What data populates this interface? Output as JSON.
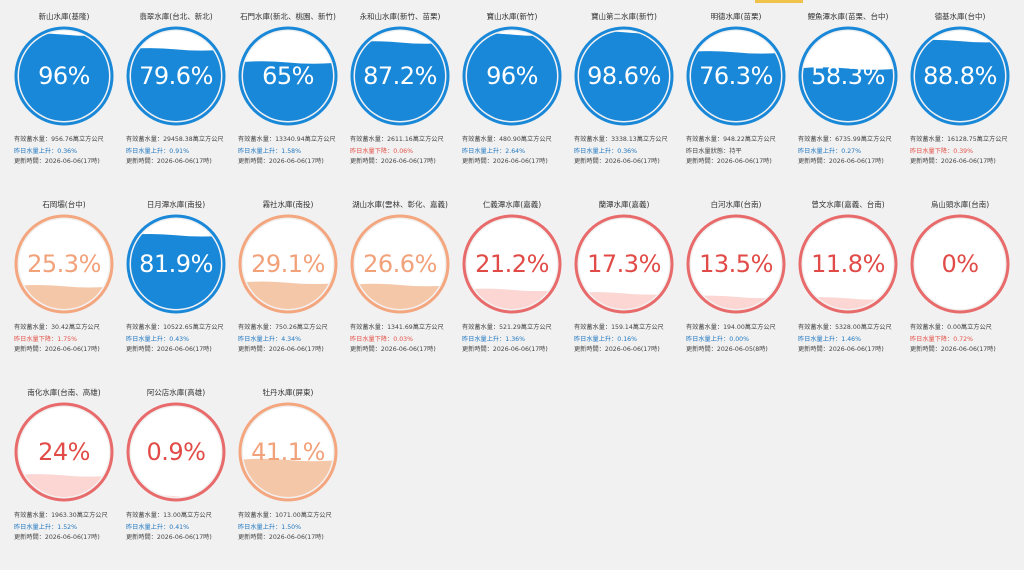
{
  "colors": {
    "blue": "#1a88d8",
    "blue_text": "#1f78c1",
    "orange": "#f4a67f",
    "orange_text": "#f1a27a",
    "red": "#e86a6a",
    "red_text": "#e14b47",
    "red_fill": "#fbd6d2",
    "orange_fill": "#f5c7a9"
  },
  "reservoirs": [
    {
      "name": "新山水庫(基隆)",
      "pct_label": "96%",
      "level": 0.96,
      "status": "blue",
      "storage": "有效蓄水量：956.76萬立方公尺",
      "change": "昨日水量上升：0.36%",
      "change_dir": "up",
      "updated": "更新時間：2026-06-06(17時)"
    },
    {
      "name": "翡翠水庫(台北、新北)",
      "pct_label": "79.6%",
      "level": 0.796,
      "status": "blue",
      "storage": "有效蓄水量：29458.38萬立方公尺",
      "change": "昨日水量上升：0.91%",
      "change_dir": "up",
      "updated": "更新時間：2026-06-06(17時)"
    },
    {
      "name": "石門水庫(新北、桃園、新竹)",
      "pct_label": "65%",
      "level": 0.65,
      "status": "blue",
      "storage": "有效蓄水量：13340.94萬立方公尺",
      "change": "昨日水量上升：1.58%",
      "change_dir": "up",
      "updated": "更新時間：2026-06-06(17時)"
    },
    {
      "name": "永和山水庫(新竹、苗栗)",
      "pct_label": "87.2%",
      "level": 0.872,
      "status": "blue",
      "storage": "有效蓄水量：2611.16萬立方公尺",
      "change": "昨日水量下降：0.06%",
      "change_dir": "down",
      "updated": "更新時間：2026-06-06(17時)"
    },
    {
      "name": "寶山水庫(新竹)",
      "pct_label": "96%",
      "level": 0.96,
      "status": "blue",
      "storage": "有效蓄水量：480.90萬立方公尺",
      "change": "昨日水量上升：2.64%",
      "change_dir": "up",
      "updated": "更新時間：2026-06-06(17時)"
    },
    {
      "name": "寶山第二水庫(新竹)",
      "pct_label": "98.6%",
      "level": 0.986,
      "status": "blue",
      "storage": "有效蓄水量：3338.13萬立方公尺",
      "change": "昨日水量上升：0.36%",
      "change_dir": "up",
      "updated": "更新時間：2026-06-06(17時)"
    },
    {
      "name": "明德水庫(苗栗)",
      "pct_label": "76.3%",
      "level": 0.763,
      "status": "blue",
      "storage": "有效蓄水量：948.22萬立方公尺",
      "change": "昨日水量狀態：持平",
      "change_dir": "neutral",
      "updated": "更新時間：2026-06-06(17時)"
    },
    {
      "name": "鯉魚潭水庫(苗栗、台中)",
      "pct_label": "58.3%",
      "level": 0.583,
      "status": "blue",
      "storage": "有效蓄水量：6735.99萬立方公尺",
      "change": "昨日水量上升：0.27%",
      "change_dir": "up",
      "updated": "更新時間：2026-06-06(17時)"
    },
    {
      "name": "德基水庫(台中)",
      "pct_label": "88.8%",
      "level": 0.888,
      "status": "blue",
      "storage": "有效蓄水量：16128.75萬立方公尺",
      "change": "昨日水量下降：0.39%",
      "change_dir": "down",
      "updated": "更新時間：2026-06-06(17時)"
    },
    {
      "name": "石岡壩(台中)",
      "pct_label": "25.3%",
      "level": 0.253,
      "status": "orange",
      "storage": "有效蓄水量：30.42萬立方公尺",
      "change": "昨日水量下降：1.75%",
      "change_dir": "down",
      "updated": "更新時間：2026-06-06(17時)"
    },
    {
      "name": "日月潭水庫(南投)",
      "pct_label": "81.9%",
      "level": 0.819,
      "status": "blue",
      "storage": "有效蓄水量：10522.65萬立方公尺",
      "change": "昨日水量上升：0.43%",
      "change_dir": "up",
      "updated": "更新時間：2026-06-06(17時)"
    },
    {
      "name": "霧社水庫(南投)",
      "pct_label": "29.1%",
      "level": 0.291,
      "status": "orange",
      "storage": "有效蓄水量：750.26萬立方公尺",
      "change": "昨日水量上升：4.34%",
      "change_dir": "up",
      "updated": "更新時間：2026-06-06(17時)"
    },
    {
      "name": "湖山水庫(雲林、彰化、嘉義)",
      "pct_label": "26.6%",
      "level": 0.266,
      "status": "orange",
      "storage": "有效蓄水量：1341.69萬立方公尺",
      "change": "昨日水量下降：0.03%",
      "change_dir": "down",
      "updated": "更新時間：2026-06-06(17時)"
    },
    {
      "name": "仁義潭水庫(嘉義)",
      "pct_label": "21.2%",
      "level": 0.212,
      "status": "red",
      "storage": "有效蓄水量：521.29萬立方公尺",
      "change": "昨日水量上升：1.36%",
      "change_dir": "up",
      "updated": "更新時間：2026-06-06(17時)"
    },
    {
      "name": "蘭潭水庫(嘉義)",
      "pct_label": "17.3%",
      "level": 0.173,
      "status": "red",
      "storage": "有效蓄水量：159.14萬立方公尺",
      "change": "昨日水量上升：0.16%",
      "change_dir": "up",
      "updated": "更新時間：2026-06-06(17時)"
    },
    {
      "name": "白河水庫(台南)",
      "pct_label": "13.5%",
      "level": 0.135,
      "status": "red",
      "storage": "有效蓄水量：194.00萬立方公尺",
      "change": "昨日水量上升：0.00%",
      "change_dir": "up",
      "updated": "更新時間：2026-06-05(8時)"
    },
    {
      "name": "曾文水庫(嘉義、台南)",
      "pct_label": "11.8%",
      "level": 0.118,
      "status": "red",
      "storage": "有效蓄水量：5328.00萬立方公尺",
      "change": "昨日水量上升：1.46%",
      "change_dir": "up",
      "updated": "更新時間：2026-06-06(17時)"
    },
    {
      "name": "烏山頭水庫(台南)",
      "pct_label": "0%",
      "level": 0.0,
      "status": "red",
      "storage": "有效蓄水量：0.00萬立方公尺",
      "change": "昨日水量下降：0.72%",
      "change_dir": "down",
      "updated": "更新時間：2026-06-06(17時)"
    },
    {
      "name": "南化水庫(台南、高雄)",
      "pct_label": "24%",
      "level": 0.24,
      "status": "red",
      "storage": "有效蓄水量：1963.30萬立方公尺",
      "change": "昨日水量上升：1.52%",
      "change_dir": "up",
      "updated": "更新時間：2026-06-06(17時)"
    },
    {
      "name": "阿公店水庫(高雄)",
      "pct_label": "0.9%",
      "level": 0.009,
      "status": "red",
      "storage": "有效蓄水量：13.00萬立方公尺",
      "change": "昨日水量上升：0.41%",
      "change_dir": "up",
      "updated": "更新時間：2026-06-06(17時)"
    },
    {
      "name": "牡丹水庫(屏東)",
      "pct_label": "41.1%",
      "level": 0.411,
      "status": "orange",
      "storage": "有效蓄水量：1071.00萬立方公尺",
      "change": "昨日水量上升：1.50%",
      "change_dir": "up",
      "updated": "更新時間：2026-06-06(17時)"
    }
  ]
}
